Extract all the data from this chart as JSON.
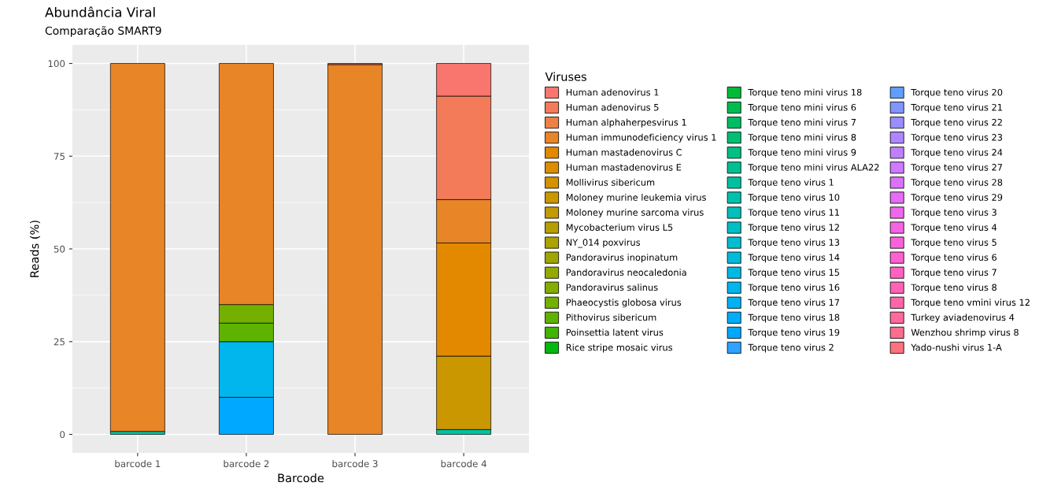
{
  "chart_data": {
    "type": "bar",
    "title": "Abundância Viral",
    "subtitle": "Comparação SMART9",
    "xlabel": "Barcode",
    "ylabel": "Reads (%)",
    "legend_title": "Viruses",
    "legend": "right",
    "stacked": true,
    "grid": true,
    "categories": [
      "barcode 1",
      "barcode 2",
      "barcode 3",
      "barcode 4"
    ],
    "ylim": [
      -5,
      105
    ],
    "yticks": [
      0,
      25,
      50,
      75,
      100
    ],
    "series": [
      {
        "name": "Yado-nushi virus 1-A",
        "color": "#fc727e",
        "values": [
          0,
          0,
          0,
          0
        ]
      },
      {
        "name": "Wenzhou shrimp virus 8",
        "color": "#fe6d8d",
        "values": [
          0,
          0,
          0,
          0
        ]
      },
      {
        "name": "Turkey aviadenovirus 4",
        "color": "#ff699c",
        "values": [
          0,
          0,
          0,
          0
        ]
      },
      {
        "name": "Torque teno vmini virus 12",
        "color": "#ff66aa",
        "values": [
          0,
          0,
          0,
          0
        ]
      },
      {
        "name": "Torque teno virus 8",
        "color": "#ff63b7",
        "values": [
          0,
          0,
          0,
          0
        ]
      },
      {
        "name": "Torque teno virus 7",
        "color": "#ff61c3",
        "values": [
          0,
          0,
          0,
          0
        ]
      },
      {
        "name": "Torque teno virus 6",
        "color": "#fe61cf",
        "values": [
          0,
          0,
          0,
          0
        ]
      },
      {
        "name": "Torque teno virus 5",
        "color": "#fa62da",
        "values": [
          0,
          0,
          0,
          0
        ]
      },
      {
        "name": "Torque teno virus 4",
        "color": "#f564e3",
        "values": [
          0,
          0,
          0,
          0
        ]
      },
      {
        "name": "Torque teno virus 3",
        "color": "#ee67ec",
        "values": [
          0,
          0,
          0,
          0
        ]
      },
      {
        "name": "Torque teno virus 29",
        "color": "#e56cf4",
        "values": [
          0,
          0,
          0,
          0
        ]
      },
      {
        "name": "Torque teno virus 28",
        "color": "#db72fb",
        "values": [
          0,
          0,
          0,
          0
        ]
      },
      {
        "name": "Torque teno virus 27",
        "color": "#ce79ff",
        "values": [
          0,
          0,
          0,
          0
        ]
      },
      {
        "name": "Torque teno virus 24",
        "color": "#bf80ff",
        "values": [
          0,
          0,
          0,
          0
        ]
      },
      {
        "name": "Torque teno virus 23",
        "color": "#ae87ff",
        "values": [
          0,
          0,
          0,
          0
        ]
      },
      {
        "name": "Torque teno virus 22",
        "color": "#998eff",
        "values": [
          0,
          0,
          0,
          0
        ]
      },
      {
        "name": "Torque teno virus 21",
        "color": "#8195ff",
        "values": [
          0,
          0,
          0,
          0
        ]
      },
      {
        "name": "Torque teno virus 20",
        "color": "#619cff",
        "values": [
          0,
          0,
          0,
          0
        ]
      },
      {
        "name": "Torque teno virus 2",
        "color": "#2ea2ff",
        "values": [
          0,
          0,
          0,
          0
        ]
      },
      {
        "name": "Torque teno virus 19",
        "color": "#00a8ff",
        "values": [
          0,
          10,
          0,
          0
        ]
      },
      {
        "name": "Torque teno virus 18",
        "color": "#00adfa",
        "values": [
          0,
          0,
          0,
          0
        ]
      },
      {
        "name": "Torque teno virus 17",
        "color": "#00b2f4",
        "values": [
          0,
          0,
          0,
          0
        ]
      },
      {
        "name": "Torque teno virus 16",
        "color": "#00b6ec",
        "values": [
          0,
          15,
          0,
          0
        ]
      },
      {
        "name": "Torque teno virus 15",
        "color": "#00b9e3",
        "values": [
          0,
          0,
          0,
          0
        ]
      },
      {
        "name": "Torque teno virus 14",
        "color": "#00bbda",
        "values": [
          0,
          0,
          0,
          0
        ]
      },
      {
        "name": "Torque teno virus 13",
        "color": "#00becf",
        "values": [
          0,
          0,
          0,
          0
        ]
      },
      {
        "name": "Torque teno virus 12",
        "color": "#00bfc4",
        "values": [
          0,
          0,
          0,
          0
        ]
      },
      {
        "name": "Torque teno virus 11",
        "color": "#00c0b9",
        "values": [
          0,
          0,
          0,
          0
        ]
      },
      {
        "name": "Torque teno virus 10",
        "color": "#00c1ac",
        "values": [
          0,
          0,
          0,
          0
        ]
      },
      {
        "name": "Torque teno virus 1",
        "color": "#00c19f",
        "values": [
          0.8,
          0,
          0,
          1.3
        ]
      },
      {
        "name": "Torque teno mini virus ALA22",
        "color": "#00c092",
        "values": [
          0,
          0,
          0,
          0
        ]
      },
      {
        "name": "Torque teno mini virus 9",
        "color": "#00c083",
        "values": [
          0,
          0,
          0,
          0
        ]
      },
      {
        "name": "Torque teno mini virus 8",
        "color": "#00bf74",
        "values": [
          0,
          0,
          0,
          0
        ]
      },
      {
        "name": "Torque teno mini virus 7",
        "color": "#00bd63",
        "values": [
          0,
          0,
          0,
          0
        ]
      },
      {
        "name": "Torque teno mini virus 6",
        "color": "#00bc50",
        "values": [
          0,
          0,
          0,
          0
        ]
      },
      {
        "name": "Torque teno mini virus 18",
        "color": "#00ba38",
        "values": [
          0,
          0,
          0,
          0
        ]
      },
      {
        "name": "Rice stripe mosaic virus",
        "color": "#00b80f",
        "values": [
          0,
          0,
          0,
          0
        ]
      },
      {
        "name": "Poinsettia latent virus",
        "color": "#41b500",
        "values": [
          0,
          0,
          0,
          0
        ]
      },
      {
        "name": "Pithovirus sibericum",
        "color": "#5eb300",
        "values": [
          0,
          5,
          0,
          0
        ]
      },
      {
        "name": "Phaeocystis globosa virus",
        "color": "#73b000",
        "values": [
          0,
          5,
          0,
          0
        ]
      },
      {
        "name": "Pandoravirus salinus",
        "color": "#84ad00",
        "values": [
          0,
          0,
          0,
          0
        ]
      },
      {
        "name": "Pandoravirus neocaledonia",
        "color": "#93aa00",
        "values": [
          0,
          0,
          0,
          0
        ]
      },
      {
        "name": "Pandoravirus inopinatum",
        "color": "#a0a600",
        "values": [
          0,
          0,
          0,
          0
        ]
      },
      {
        "name": "NY_014 poxvirus",
        "color": "#aca300",
        "values": [
          0,
          0,
          0,
          0
        ]
      },
      {
        "name": "Mycobacterium virus L5",
        "color": "#b79f00",
        "values": [
          0,
          0,
          0,
          0
        ]
      },
      {
        "name": "Moloney murine sarcoma virus",
        "color": "#c19b00",
        "values": [
          0,
          0,
          0,
          0
        ]
      },
      {
        "name": "Moloney murine leukemia virus",
        "color": "#ca9700",
        "values": [
          0,
          0,
          0,
          19.8
        ]
      },
      {
        "name": "Mollivirus sibericum",
        "color": "#d39200",
        "values": [
          0,
          0,
          0,
          0
        ]
      },
      {
        "name": "Human mastadenovirus E",
        "color": "#db8e00",
        "values": [
          0,
          0,
          0,
          0
        ]
      },
      {
        "name": "Human mastadenovirus C",
        "color": "#e28900",
        "values": [
          0,
          0,
          0,
          30.5
        ]
      },
      {
        "name": "Human immunodeficiency virus 1",
        "color": "#e88526",
        "values": [
          99.2,
          65,
          99.7,
          11.7
        ]
      },
      {
        "name": "Human alphaherpesvirus 1",
        "color": "#ee8045",
        "values": [
          0,
          0,
          0,
          0
        ]
      },
      {
        "name": "Human adenovirus 5",
        "color": "#f37b5a",
        "values": [
          0,
          0,
          0.3,
          27.9
        ]
      },
      {
        "name": "Human adenovirus 1",
        "color": "#f8766d",
        "values": [
          0,
          0,
          0,
          8.8
        ]
      }
    ]
  }
}
